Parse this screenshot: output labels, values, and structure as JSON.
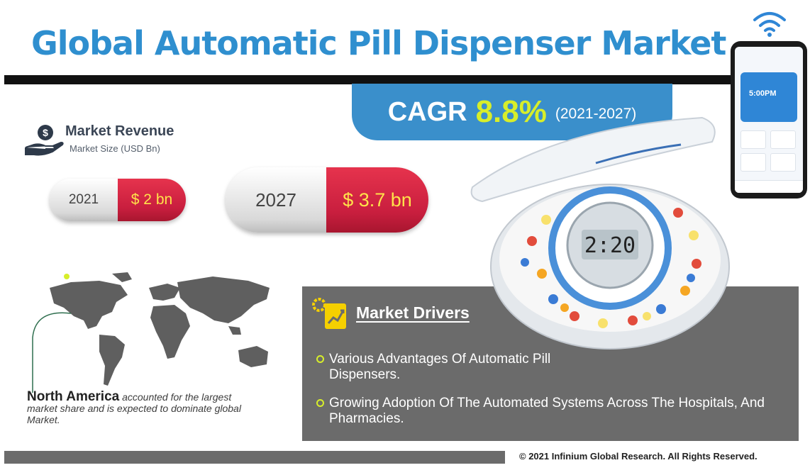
{
  "header": {
    "title": "Global Automatic Pill Dispenser Market"
  },
  "cagr": {
    "label": "CAGR",
    "value": "8.8%",
    "period": "(2021-2027)"
  },
  "revenue": {
    "title": "Market Revenue",
    "subtitle": "Market Size (USD Bn)",
    "pills": [
      {
        "year": "2021",
        "value": "$ 2 bn"
      },
      {
        "year": "2027",
        "value": "$ 3.7 bn"
      }
    ]
  },
  "region": {
    "highlight": "North America",
    "description": "accounted for the largest market share and is expected to dominate global Market."
  },
  "drivers": {
    "title": "Market Drivers",
    "items": [
      "Various Advantages Of Automatic Pill Dispensers.",
      "Growing Adoption Of The Automated Systems Across The Hospitals, And Pharmacies."
    ]
  },
  "device": {
    "display_reading": "2:20",
    "phone_time": "5:00PM"
  },
  "footer": {
    "copyright": "© 2021 Infinium Global Research. All Rights Reserved."
  },
  "colors": {
    "title_blue": "#2f8fcf",
    "cagr_box": "#3a8fcb",
    "cagr_value": "#d7ee2a",
    "pill_red": "#c81e3e",
    "pill_text": "#ffe34a",
    "panel_grey": "#6b6b6b"
  }
}
